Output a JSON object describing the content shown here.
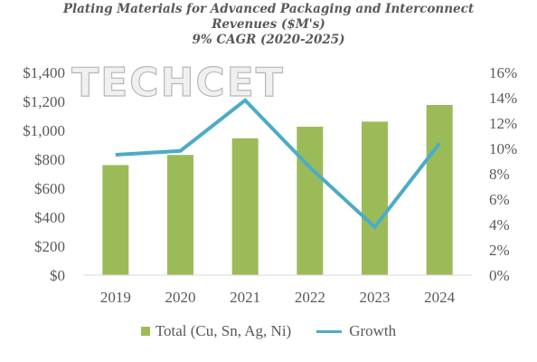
{
  "title": {
    "line1": "Plating Materials for Advanced Packaging and Interconnect",
    "line2": "Revenues ($M's)",
    "line3": "9% CAGR (2020-2025)"
  },
  "watermark": "TECHCET",
  "colors": {
    "bar": "#9bbb59",
    "line": "#4bacc6",
    "text": "#595959"
  },
  "chart_data": {
    "type": "bar",
    "categories": [
      "2019",
      "2020",
      "2021",
      "2022",
      "2023",
      "2024"
    ],
    "series": [
      {
        "name": "Total (Cu, Sn, Ag, Ni)",
        "type": "bar",
        "axis": "left",
        "values": [
          760,
          830,
          945,
          1025,
          1060,
          1175
        ]
      },
      {
        "name": "Growth",
        "type": "line",
        "axis": "right",
        "values": [
          9.5,
          9.8,
          13.8,
          8.5,
          3.8,
          10.4
        ]
      }
    ],
    "y_left": {
      "ylim": [
        0,
        1400
      ],
      "ticks": [
        "$0",
        "$200",
        "$400",
        "$600",
        "$800",
        "$1,000",
        "$1,200",
        "$1,400"
      ]
    },
    "y_right": {
      "ylim": [
        0,
        16
      ],
      "ticks": [
        "0%",
        "2%",
        "4%",
        "6%",
        "8%",
        "10%",
        "12%",
        "14%",
        "16%"
      ]
    },
    "legend_position": "bottom",
    "grid": false
  }
}
